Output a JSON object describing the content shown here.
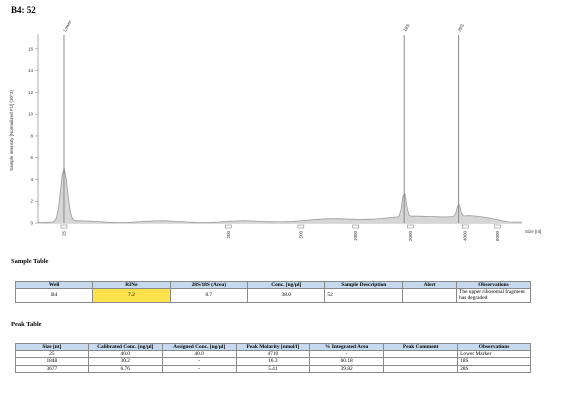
{
  "title": "B4: 52",
  "chart_data": {
    "type": "line",
    "ylabel": "Sample Intensity [Normalized FU] (10^3)",
    "xlabel": "Size [nt]",
    "yticks": [
      "0",
      "2",
      "4",
      "6",
      "8",
      "10",
      "12",
      "14",
      "16"
    ],
    "ylim": [
      0,
      17
    ],
    "xticks": [
      "25",
      "200",
      "500",
      "1000",
      "2000",
      "4000",
      "6000"
    ],
    "x": [
      25,
      35,
      60,
      100,
      150,
      200,
      300,
      400,
      500,
      700,
      1000,
      1300,
      1600,
      1848,
      2100,
      2600,
      3000,
      3677,
      4000,
      5000,
      6000
    ],
    "y": [
      4.9,
      0.4,
      0.2,
      0.15,
      0.2,
      0.3,
      0.15,
      0.2,
      0.3,
      0.35,
      0.45,
      0.7,
      1.0,
      2.3,
      0.6,
      0.7,
      0.8,
      1.2,
      0.4,
      0.15,
      0.05
    ],
    "peak_labels": [
      "Lower",
      "18S",
      "28S"
    ],
    "peak_x": [
      25,
      1848,
      3677
    ]
  },
  "sample_table": {
    "heading": "Sample Table",
    "headers": [
      "Well",
      "RINe",
      "28S/18S (Area)",
      "Conc. [ng/µl]",
      "Sample Description",
      "Alert",
      "Observations"
    ],
    "row": {
      "well": "B4",
      "rine": "7.2",
      "ratio": "0.7",
      "conc": "38.0",
      "desc": "52",
      "alert": "",
      "obs": "The upper ribosomal fragment has degraded"
    }
  },
  "peak_table": {
    "heading": "Peak Table",
    "headers": [
      "Size [nt]",
      "Calibrated Conc. [ng/µl]",
      "Assigned Conc. [ng/µl]",
      "Peak Molarity [nmol/l]",
      "% Integrated Area",
      "Peak Comment",
      "Observations"
    ],
    "rows": [
      {
        "size": "25",
        "cal": "40.0",
        "assigned": "40.0",
        "molarity": "4710",
        "area": "-",
        "comment": "",
        "obs": "Lower Marker"
      },
      {
        "size": "1848",
        "cal": "30.2",
        "assigned": "-",
        "molarity": "16.3",
        "area": "60.18",
        "comment": "",
        "obs": "18S"
      },
      {
        "size": "3677",
        "cal": "6.76",
        "assigned": "-",
        "molarity": "5.41",
        "area": "39.82",
        "comment": "",
        "obs": "28S"
      }
    ]
  },
  "colors": {
    "trace": "#9a9a9a",
    "fill": "#d6d6d6",
    "header": "#c6d9ef",
    "highlight": "#ffe14b"
  }
}
